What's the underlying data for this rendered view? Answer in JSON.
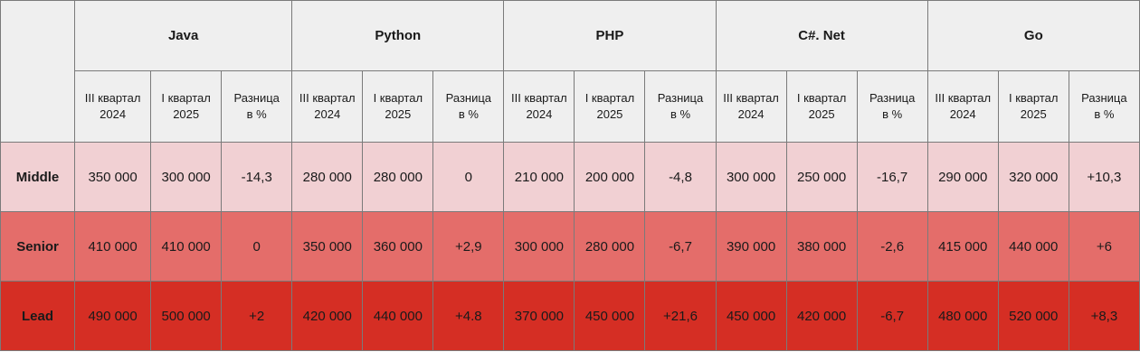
{
  "chart_data": {
    "type": "table",
    "languages": [
      "Java",
      "Python",
      "PHP",
      "C#. Net",
      "Go"
    ],
    "subheaders": [
      "III квартал\n2024",
      "I квартал\n2025",
      "Разница\nв %"
    ],
    "rows": [
      {
        "label": "Middle",
        "color": "#f1d0d3",
        "cells": [
          "350 000",
          "300 000",
          "-14,3",
          "280 000",
          "280 000",
          "0",
          "210 000",
          "200 000",
          "-4,8",
          "300 000",
          "250 000",
          "-16,7",
          "290 000",
          "320 000",
          "+10,3"
        ]
      },
      {
        "label": "Senior",
        "color": "#e46d6a",
        "cells": [
          "410 000",
          "410 000",
          "0",
          "350 000",
          "360 000",
          "+2,9",
          "300 000",
          "280 000",
          "-6,7",
          "390 000",
          "380 000",
          "-2,6",
          "415 000",
          "440 000",
          "+6"
        ]
      },
      {
        "label": "Lead",
        "color": "#d52e24",
        "cells": [
          "490 000",
          "500 000",
          "+2",
          "420 000",
          "440 000",
          "+4.8",
          "370 000",
          "450 000",
          "+21,6",
          "450 000",
          "420 000",
          "-6,7",
          "480 000",
          "520 000",
          "+8,3"
        ]
      }
    ]
  }
}
